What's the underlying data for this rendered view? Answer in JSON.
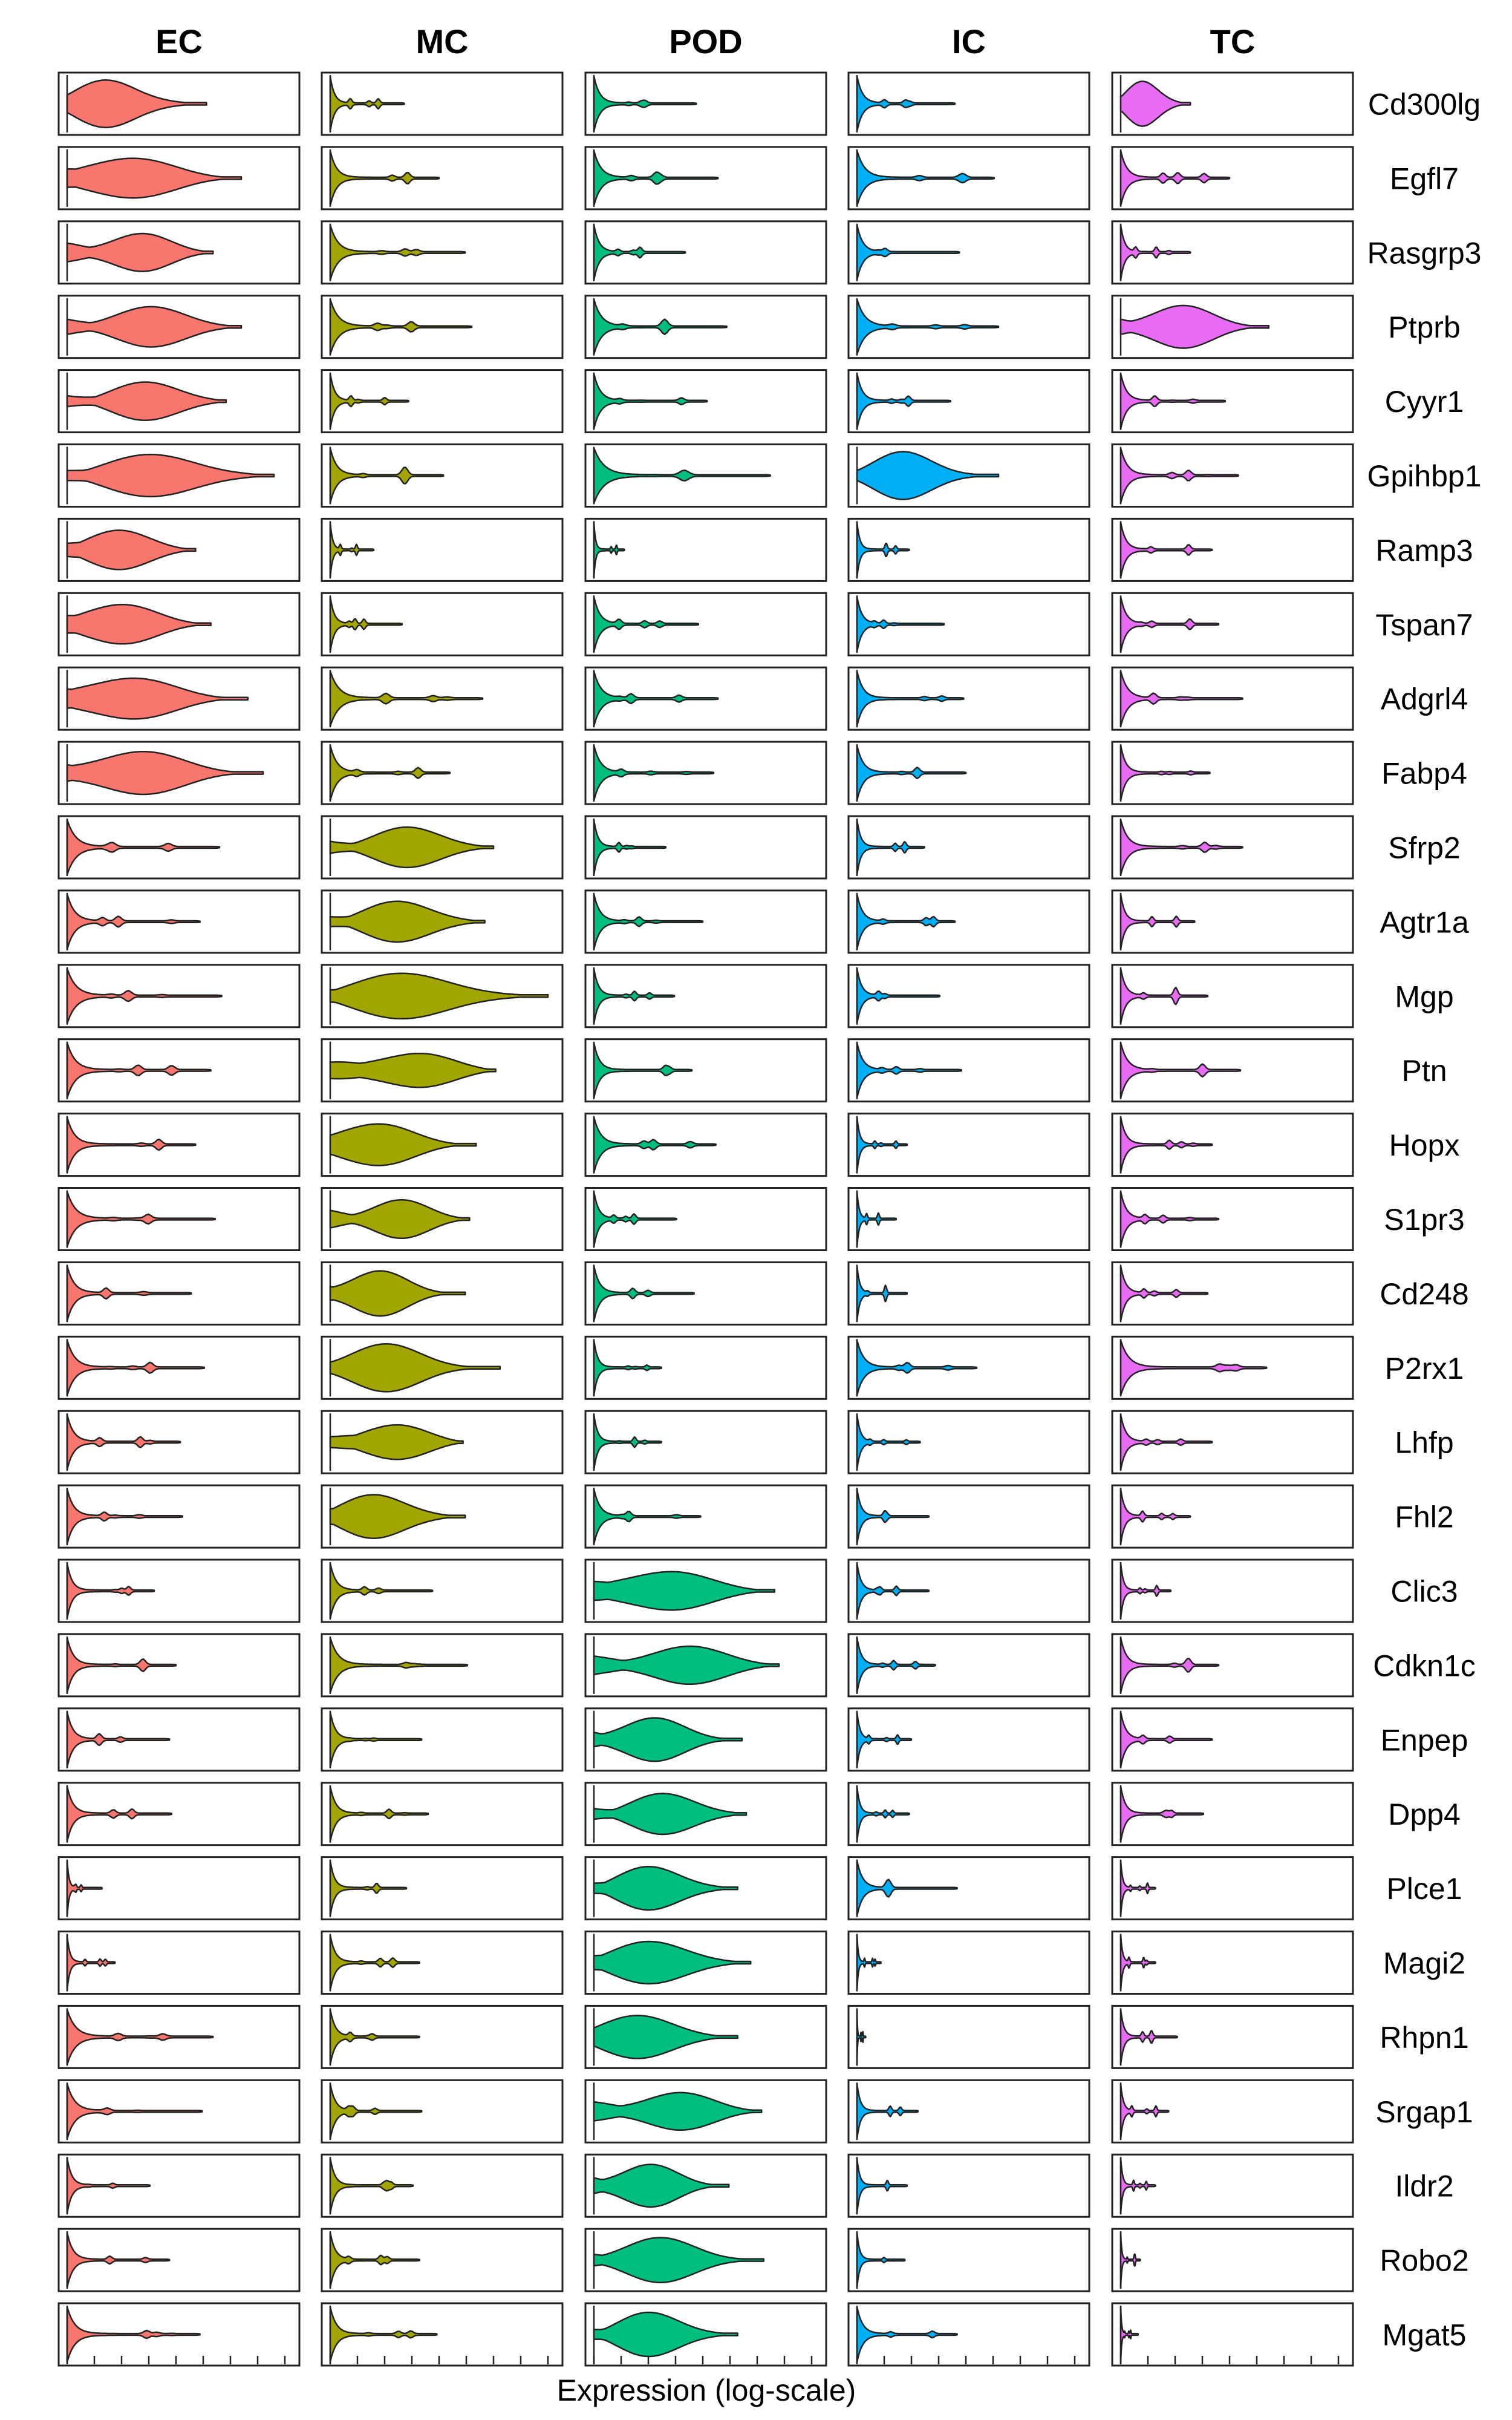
{
  "chart_data": {
    "type": "violin",
    "title": "",
    "xlabel": "Expression (log-scale)",
    "ylabel": "",
    "columns": [
      {
        "name": "EC",
        "color": "#F8766D"
      },
      {
        "name": "MC",
        "color": "#A3A500"
      },
      {
        "name": "POD",
        "color": "#00BF7D"
      },
      {
        "name": "IC",
        "color": "#00B0F6"
      },
      {
        "name": "TC",
        "color": "#E76BF3"
      }
    ],
    "genes": [
      "Cd300lg",
      "Egfl7",
      "Rasgrp3",
      "Ptprb",
      "Cyyr1",
      "Gpihbp1",
      "Ramp3",
      "Tspan7",
      "Adgrl4",
      "Fabp4",
      "Sfrp2",
      "Agtr1a",
      "Mgp",
      "Ptn",
      "Hopx",
      "S1pr3",
      "Cd248",
      "P2rx1",
      "Lhfp",
      "Fhl2",
      "Clic3",
      "Cdkn1c",
      "Enpep",
      "Dpp4",
      "Plce1",
      "Magi2",
      "Rhpn1",
      "Srgap1",
      "Ildr2",
      "Robo2",
      "Mgat5"
    ],
    "x_range": [
      0,
      1
    ],
    "x_ticks": 8,
    "max_expression": [
      [
        0.64,
        0.34,
        0.47,
        0.45,
        0.32
      ],
      [
        0.8,
        0.5,
        0.57,
        0.63,
        0.5
      ],
      [
        0.67,
        0.62,
        0.42,
        0.47,
        0.32
      ],
      [
        0.8,
        0.65,
        0.61,
        0.65,
        0.68
      ],
      [
        0.73,
        0.36,
        0.52,
        0.43,
        0.48
      ],
      [
        0.95,
        0.52,
        0.81,
        0.65,
        0.54
      ],
      [
        0.59,
        0.2,
        0.14,
        0.24,
        0.42
      ],
      [
        0.66,
        0.33,
        0.48,
        0.4,
        0.45
      ],
      [
        0.83,
        0.7,
        0.57,
        0.49,
        0.56
      ],
      [
        0.9,
        0.55,
        0.55,
        0.5,
        0.41
      ],
      [
        0.7,
        0.75,
        0.33,
        0.31,
        0.56
      ],
      [
        0.61,
        0.71,
        0.5,
        0.45,
        0.34
      ],
      [
        0.71,
        1.0,
        0.37,
        0.38,
        0.4
      ],
      [
        0.66,
        0.76,
        0.45,
        0.48,
        0.55
      ],
      [
        0.59,
        0.67,
        0.56,
        0.23,
        0.42
      ],
      [
        0.68,
        0.64,
        0.38,
        0.18,
        0.45
      ],
      [
        0.57,
        0.62,
        0.46,
        0.23,
        0.4
      ],
      [
        0.63,
        0.78,
        0.31,
        0.55,
        0.67
      ],
      [
        0.52,
        0.61,
        0.31,
        0.29,
        0.42
      ],
      [
        0.53,
        0.62,
        0.49,
        0.33,
        0.32
      ],
      [
        0.4,
        0.47,
        0.83,
        0.33,
        0.23
      ],
      [
        0.5,
        0.63,
        0.85,
        0.36,
        0.45
      ],
      [
        0.47,
        0.42,
        0.68,
        0.25,
        0.42
      ],
      [
        0.48,
        0.45,
        0.7,
        0.24,
        0.38
      ],
      [
        0.16,
        0.35,
        0.66,
        0.46,
        0.16
      ],
      [
        0.22,
        0.41,
        0.72,
        0.11,
        0.16
      ],
      [
        0.67,
        0.41,
        0.66,
        0.04,
        0.26
      ],
      [
        0.62,
        0.42,
        0.77,
        0.28,
        0.22
      ],
      [
        0.38,
        0.38,
        0.62,
        0.23,
        0.16
      ],
      [
        0.47,
        0.41,
        0.78,
        0.22,
        0.09
      ],
      [
        0.61,
        0.49,
        0.66,
        0.46,
        0.08
      ]
    ],
    "high_expression": [
      [
        1,
        0,
        0,
        0,
        1
      ],
      [
        1,
        0,
        0,
        0,
        0
      ],
      [
        1,
        0,
        0,
        0,
        0
      ],
      [
        1,
        0,
        0,
        0,
        1
      ],
      [
        1,
        0,
        0,
        0,
        0
      ],
      [
        1,
        0,
        0,
        1,
        0
      ],
      [
        1,
        0,
        0,
        0,
        0
      ],
      [
        1,
        0,
        0,
        0,
        0
      ],
      [
        1,
        0,
        0,
        0,
        0
      ],
      [
        1,
        0,
        0,
        0,
        0
      ],
      [
        0,
        1,
        0,
        0,
        0
      ],
      [
        0,
        1,
        0,
        0,
        0
      ],
      [
        0,
        1,
        0,
        0,
        0
      ],
      [
        0,
        1,
        0,
        0,
        0
      ],
      [
        0,
        1,
        0,
        0,
        0
      ],
      [
        0,
        1,
        0,
        0,
        0
      ],
      [
        0,
        1,
        0,
        0,
        0
      ],
      [
        0,
        1,
        0,
        0,
        0
      ],
      [
        0,
        1,
        0,
        0,
        0
      ],
      [
        0,
        1,
        0,
        0,
        0
      ],
      [
        0,
        0,
        1,
        0,
        0
      ],
      [
        0,
        0,
        1,
        0,
        0
      ],
      [
        0,
        0,
        1,
        0,
        0
      ],
      [
        0,
        0,
        1,
        0,
        0
      ],
      [
        0,
        0,
        1,
        0,
        0
      ],
      [
        0,
        0,
        1,
        0,
        0
      ],
      [
        0,
        0,
        1,
        0,
        0
      ],
      [
        0,
        0,
        1,
        0,
        0
      ],
      [
        0,
        0,
        1,
        0,
        0
      ],
      [
        0,
        0,
        1,
        0,
        0
      ],
      [
        0,
        0,
        1,
        0,
        0
      ]
    ],
    "grid": false,
    "legend": "none"
  }
}
